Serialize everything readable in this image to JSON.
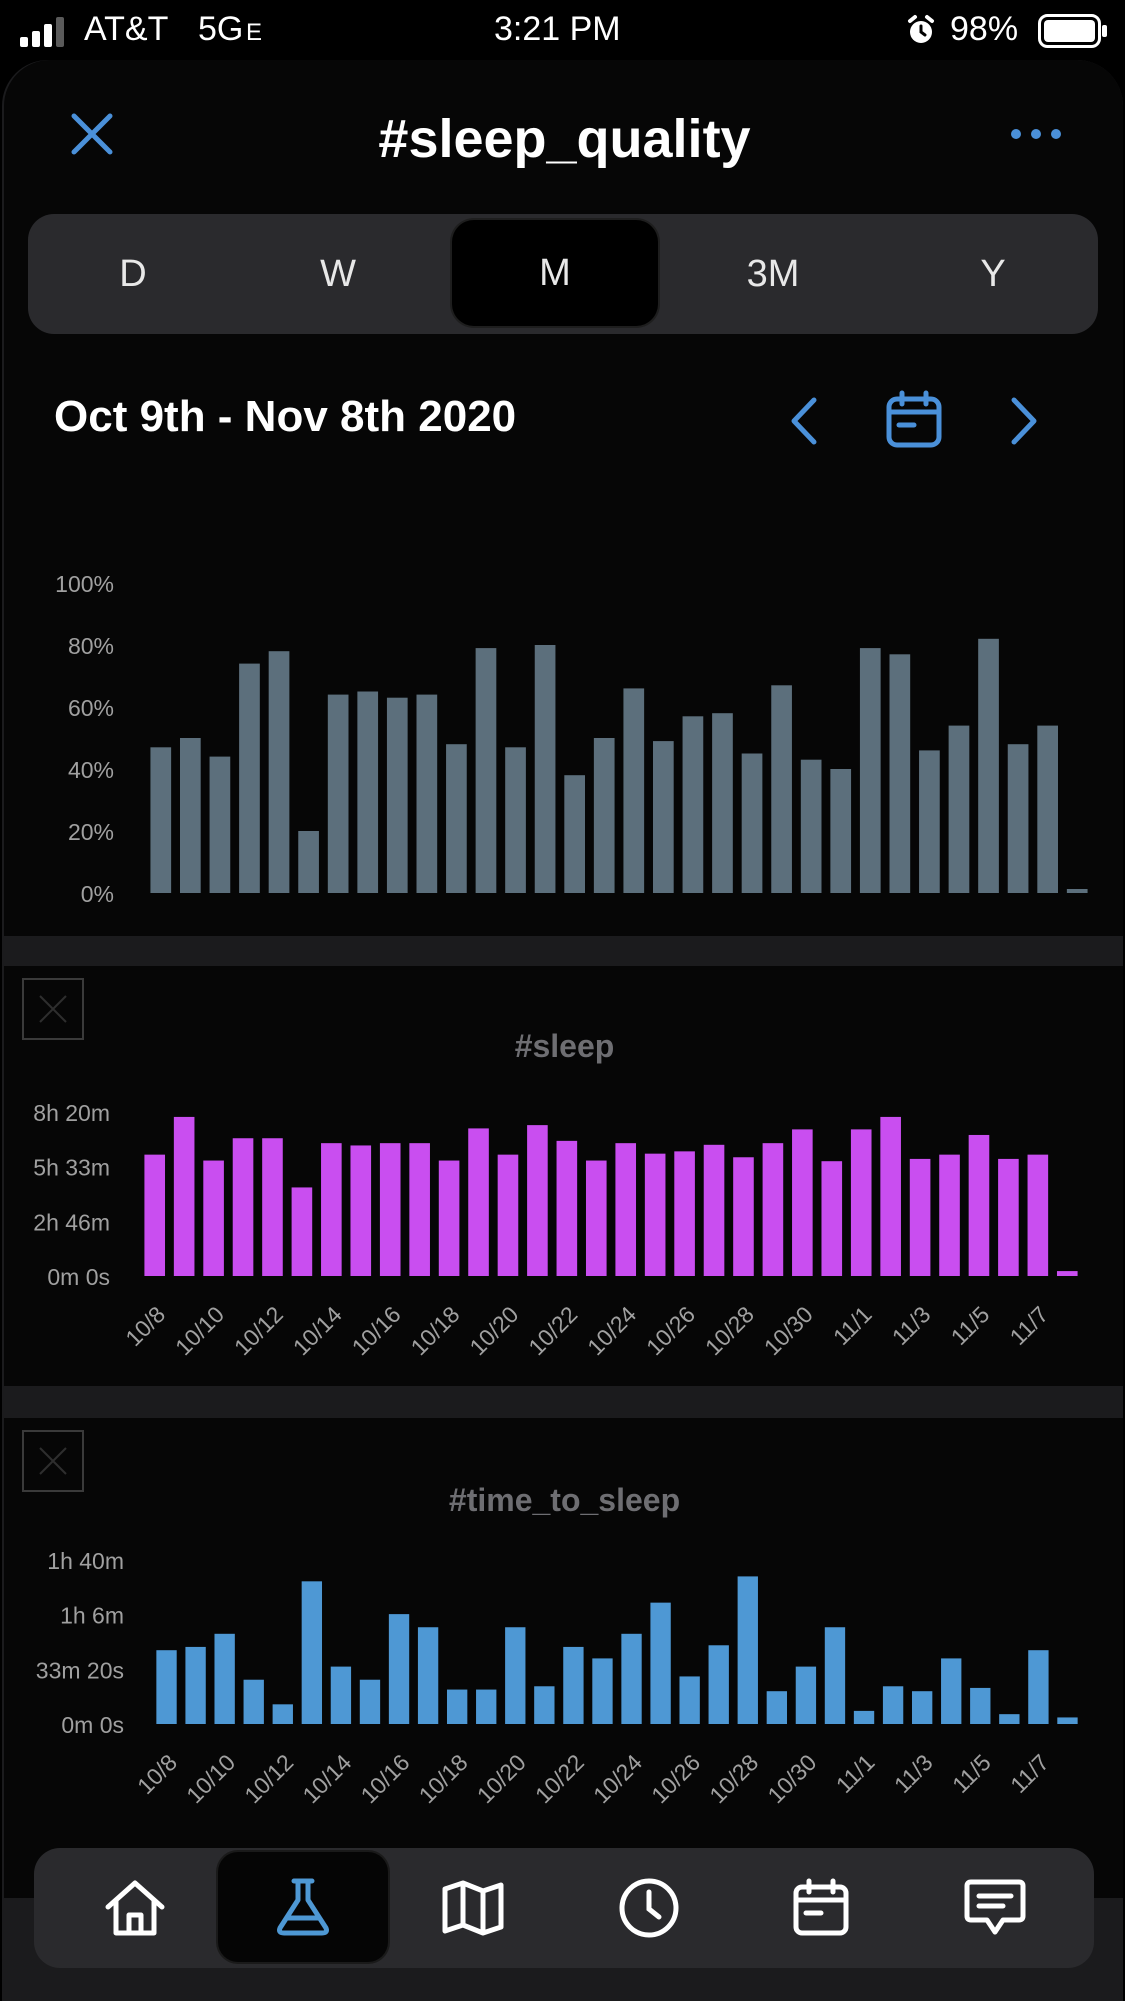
{
  "status_bar": {
    "carrier": "AT&T",
    "network": "5G",
    "network_suffix": "E",
    "time": "3:21 PM",
    "battery": "98%"
  },
  "header": {
    "title": "#sleep_quality"
  },
  "segments": [
    {
      "label": "D",
      "active": false
    },
    {
      "label": "W",
      "active": false
    },
    {
      "label": "M",
      "active": true
    },
    {
      "label": "3M",
      "active": false
    },
    {
      "label": "Y",
      "active": false
    }
  ],
  "date_range": "Oct 9th - Nov 8th 2020",
  "colors": {
    "accent": "#4a90d9",
    "quality_bar": "#5c6f7c",
    "sleep_bar": "#c94ef0",
    "time_bar": "#4e98d4"
  },
  "x_ticks": [
    "10/8",
    "10/10",
    "10/12",
    "10/14",
    "10/16",
    "10/18",
    "10/20",
    "10/22",
    "10/24",
    "10/26",
    "10/28",
    "10/30",
    "11/1",
    "11/3",
    "11/5",
    "11/7"
  ],
  "chart_data": [
    {
      "type": "bar",
      "title": "",
      "categories": [
        "10/8",
        "10/9",
        "10/10",
        "10/11",
        "10/12",
        "10/13",
        "10/14",
        "10/15",
        "10/16",
        "10/17",
        "10/18",
        "10/19",
        "10/20",
        "10/21",
        "10/22",
        "10/23",
        "10/24",
        "10/25",
        "10/26",
        "10/27",
        "10/28",
        "10/29",
        "10/30",
        "10/31",
        "11/1",
        "11/2",
        "11/3",
        "11/4",
        "11/5",
        "11/6",
        "11/7",
        "11/8"
      ],
      "values": [
        47,
        50,
        44,
        74,
        78,
        20,
        64,
        65,
        63,
        64,
        48,
        79,
        47,
        80,
        38,
        50,
        66,
        49,
        57,
        58,
        45,
        67,
        43,
        40,
        79,
        77,
        46,
        54,
        82,
        48,
        54,
        1
      ],
      "y_unit": "%",
      "ylim": [
        0,
        100
      ],
      "y_ticks": [
        "0%",
        "20%",
        "40%",
        "60%",
        "80%",
        "100%"
      ],
      "grid": false
    },
    {
      "type": "bar",
      "title": "#sleep",
      "categories": [
        "10/8",
        "10/9",
        "10/10",
        "10/11",
        "10/12",
        "10/13",
        "10/14",
        "10/15",
        "10/16",
        "10/17",
        "10/18",
        "10/19",
        "10/20",
        "10/21",
        "10/22",
        "10/23",
        "10/24",
        "10/25",
        "10/26",
        "10/27",
        "10/28",
        "10/29",
        "10/30",
        "10/31",
        "11/1",
        "11/2",
        "11/3",
        "11/4",
        "11/5",
        "11/6",
        "11/7",
        "11/8"
      ],
      "values_minutes": [
        370,
        485,
        352,
        420,
        420,
        270,
        405,
        398,
        405,
        405,
        352,
        450,
        370,
        460,
        412,
        352,
        405,
        373,
        380,
        400,
        362,
        405,
        447,
        350,
        447,
        485,
        357,
        370,
        430,
        357,
        370,
        15
      ],
      "ylim_minutes": [
        0,
        500
      ],
      "y_ticks": [
        "0m 0s",
        "2h 46m",
        "5h 33m",
        "8h 20m"
      ],
      "grid": false
    },
    {
      "type": "bar",
      "title": "#time_to_sleep",
      "categories": [
        "10/8",
        "10/9",
        "10/10",
        "10/11",
        "10/12",
        "10/13",
        "10/14",
        "10/15",
        "10/16",
        "10/17",
        "10/18",
        "10/19",
        "10/20",
        "10/21",
        "10/22",
        "10/23",
        "10/24",
        "10/25",
        "10/26",
        "10/27",
        "10/28",
        "10/29",
        "10/30",
        "10/31",
        "11/1",
        "11/2",
        "11/3",
        "11/4",
        "11/5",
        "11/6",
        "11/7",
        "11/8"
      ],
      "values_minutes": [
        45,
        47,
        55,
        27,
        12,
        87,
        35,
        27,
        67,
        59,
        21,
        21,
        59,
        23,
        47,
        40,
        55,
        74,
        29,
        48,
        90,
        20,
        35,
        59,
        8,
        23,
        20,
        40,
        22,
        6,
        45,
        4
      ],
      "ylim_minutes": [
        0,
        100
      ],
      "y_ticks": [
        "0m 0s",
        "33m 20s",
        "1h 6m",
        "1h 40m"
      ],
      "grid": false
    }
  ],
  "tab_bar": {
    "items": [
      "home-icon",
      "flask-icon",
      "map-icon",
      "clock-icon",
      "calendar-icon",
      "message-icon"
    ],
    "active_index": 1
  }
}
